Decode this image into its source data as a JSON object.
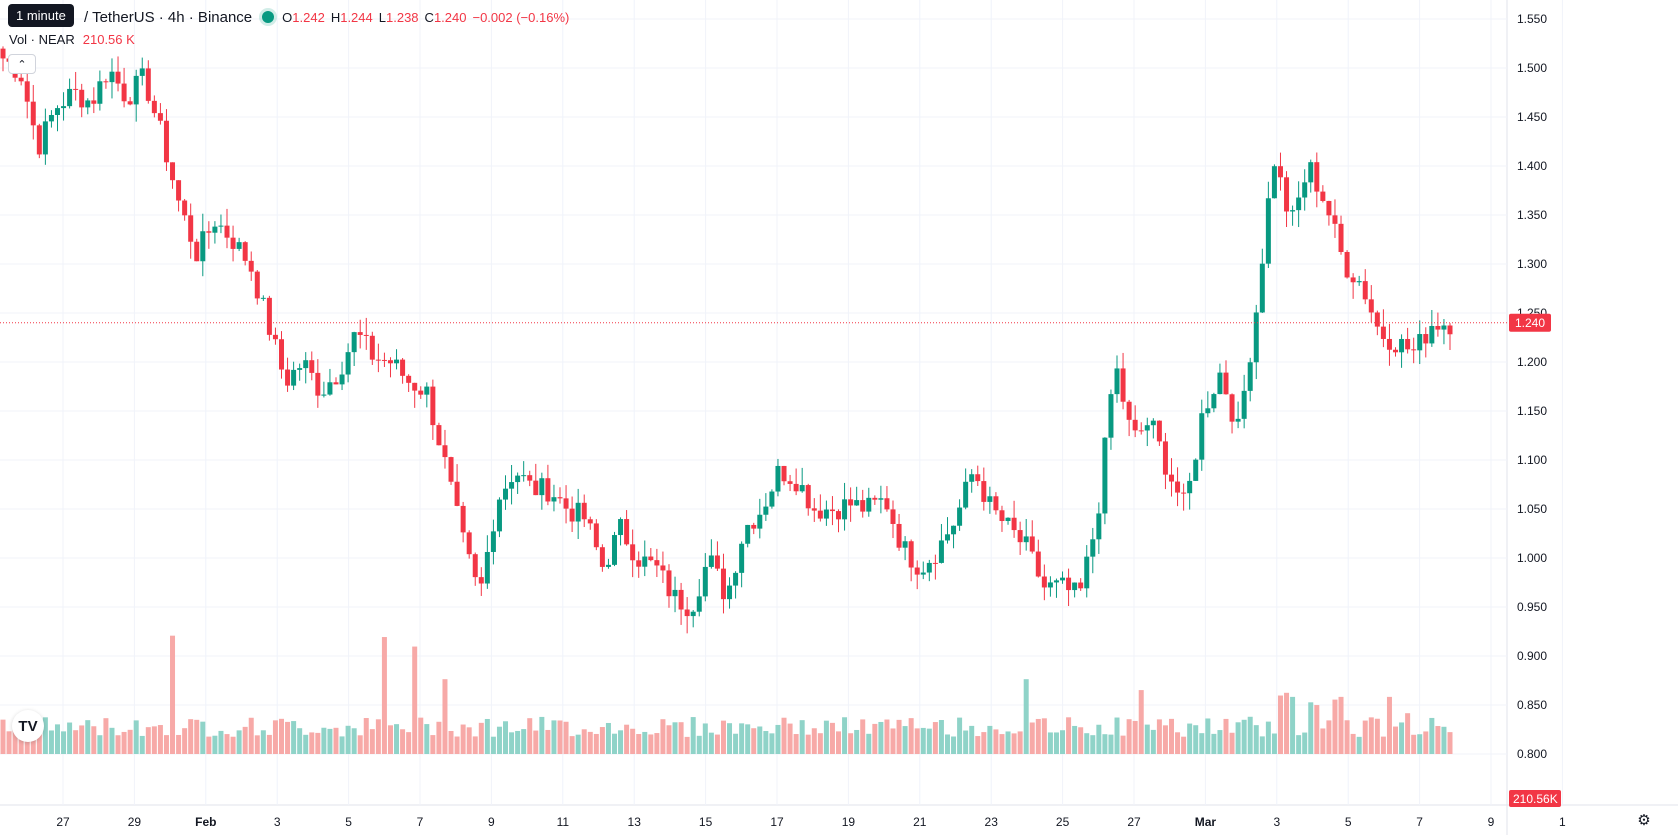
{
  "legend": {
    "tooltip": "1 minute",
    "symbol": "/ TetherUS · 4h · Binance",
    "o_label": "O",
    "o_value": "1.242",
    "h_label": "H",
    "h_value": "1.244",
    "l_label": "L",
    "l_value": "1.238",
    "c_label": "C",
    "c_value": "1.240",
    "change": "−0.002 (−0.16%)",
    "status_color": "#089981"
  },
  "volume_legend": {
    "label": "Vol · NEAR",
    "value": "210.56 K"
  },
  "icons": {
    "collapse": "chevron-up-icon",
    "logo": "tradingview-logo-icon",
    "settings": "gear-icon"
  },
  "logo_text": "TV",
  "colors": {
    "up": "#089981",
    "down": "#f23645",
    "up_volume": "#8fd3c8",
    "down_volume": "#f7a9a7",
    "grid": "#f0f3fa"
  },
  "chart_data": {
    "type": "candlestick",
    "price_axis": {
      "ticks": [
        "1.550",
        "1.500",
        "1.450",
        "1.400",
        "1.350",
        "1.300",
        "1.250",
        "1.200",
        "1.150",
        "1.100",
        "1.050",
        "1.000",
        "0.950",
        "0.900",
        "0.850",
        "0.800"
      ],
      "ylim": [
        0.78,
        1.565
      ]
    },
    "time_axis": {
      "labels": [
        "27",
        "29",
        "Feb",
        "3",
        "5",
        "7",
        "9",
        "11",
        "13",
        "15",
        "17",
        "19",
        "21",
        "23",
        "25",
        "27",
        "Mar",
        "3",
        "5",
        "7",
        "9",
        "1"
      ],
      "bold": [
        "Feb",
        "Mar"
      ]
    },
    "last_price": "1.240",
    "last_volume": "210.56K",
    "anchors": [
      1.51,
      1.495,
      1.42,
      1.46,
      1.475,
      1.465,
      1.5,
      1.47,
      1.49,
      1.43,
      1.36,
      1.31,
      1.345,
      1.325,
      1.3,
      1.24,
      1.18,
      1.2,
      1.17,
      1.19,
      1.23,
      1.205,
      1.2,
      1.18,
      1.17,
      1.1,
      1.02,
      0.96,
      1.06,
      1.09,
      1.07,
      1.07,
      1.05,
      1.04,
      0.99,
      1.03,
      1.0,
      0.99,
      0.96,
      0.95,
      1.0,
      0.96,
      1.03,
      1.05,
      1.09,
      1.08,
      1.05,
      1.05,
      1.055,
      1.05,
      1.06,
      1.01,
      0.99,
      1.01,
      1.04,
      1.09,
      1.05,
      1.03,
      1.01,
      0.97,
      0.97,
      0.96,
      1.04,
      1.2,
      1.12,
      1.14,
      1.09,
      1.05,
      1.15,
      1.19,
      1.13,
      1.25,
      1.41,
      1.34,
      1.4,
      1.36,
      1.3,
      1.28,
      1.23,
      1.22,
      1.21,
      1.24,
      1.24
    ],
    "volume_spikes": [
      [
        42,
        0.87
      ],
      [
        94,
        0.86
      ],
      [
        102,
        0.79
      ],
      [
        109,
        0.55
      ],
      [
        254,
        0.55
      ],
      [
        282,
        0.47
      ],
      [
        316,
        0.43
      ],
      [
        318,
        0.45
      ],
      [
        320,
        0.42
      ],
      [
        324,
        0.38
      ],
      [
        326,
        0.36
      ],
      [
        330,
        0.4
      ],
      [
        332,
        0.42
      ],
      [
        343,
        0.42
      ],
      [
        348,
        0.3
      ]
    ]
  }
}
